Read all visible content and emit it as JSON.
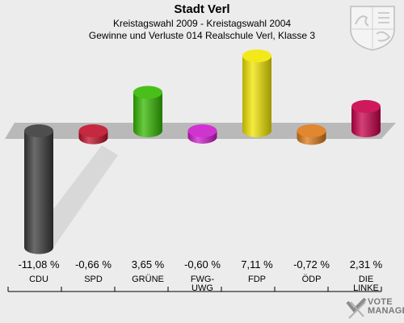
{
  "header": {
    "title": "Stadt Verl",
    "subtitle1": "Kreistagswahl 2009 - Kreistagswahl 2004",
    "subtitle2": "Gewinne und Verluste 014 Realschule Verl, Klasse 3"
  },
  "watermark": {
    "line1": "VOTE",
    "line2": "MANAGER"
  },
  "chart_data": {
    "type": "bar",
    "title": "Stadt Verl",
    "subtitle": "Kreistagswahl 2009 - Kreistagswahl 2004 / Gewinne und Verluste 014 Realschule Verl, Klasse 3",
    "categories": [
      "CDU",
      "SPD",
      "GRÜNE",
      "FWG-\nUWG",
      "FDP",
      "ÖDP",
      "DIE\nLINKE"
    ],
    "values": [
      -11.08,
      -0.66,
      3.65,
      -0.6,
      7.11,
      -0.72,
      2.31
    ],
    "value_labels": [
      "-11,08 %",
      "-0,66 %",
      "3,65 %",
      "-0,60 %",
      "7,11 %",
      "-0,72 %",
      "2,31 %"
    ],
    "colors": [
      "#3a3a3a",
      "#c0102a",
      "#35b800",
      "#cc1ccc",
      "#f2e600",
      "#dc7a18",
      "#c8004a"
    ],
    "unit": "%",
    "ylim": [
      -11.08,
      7.11
    ],
    "grid": false
  }
}
